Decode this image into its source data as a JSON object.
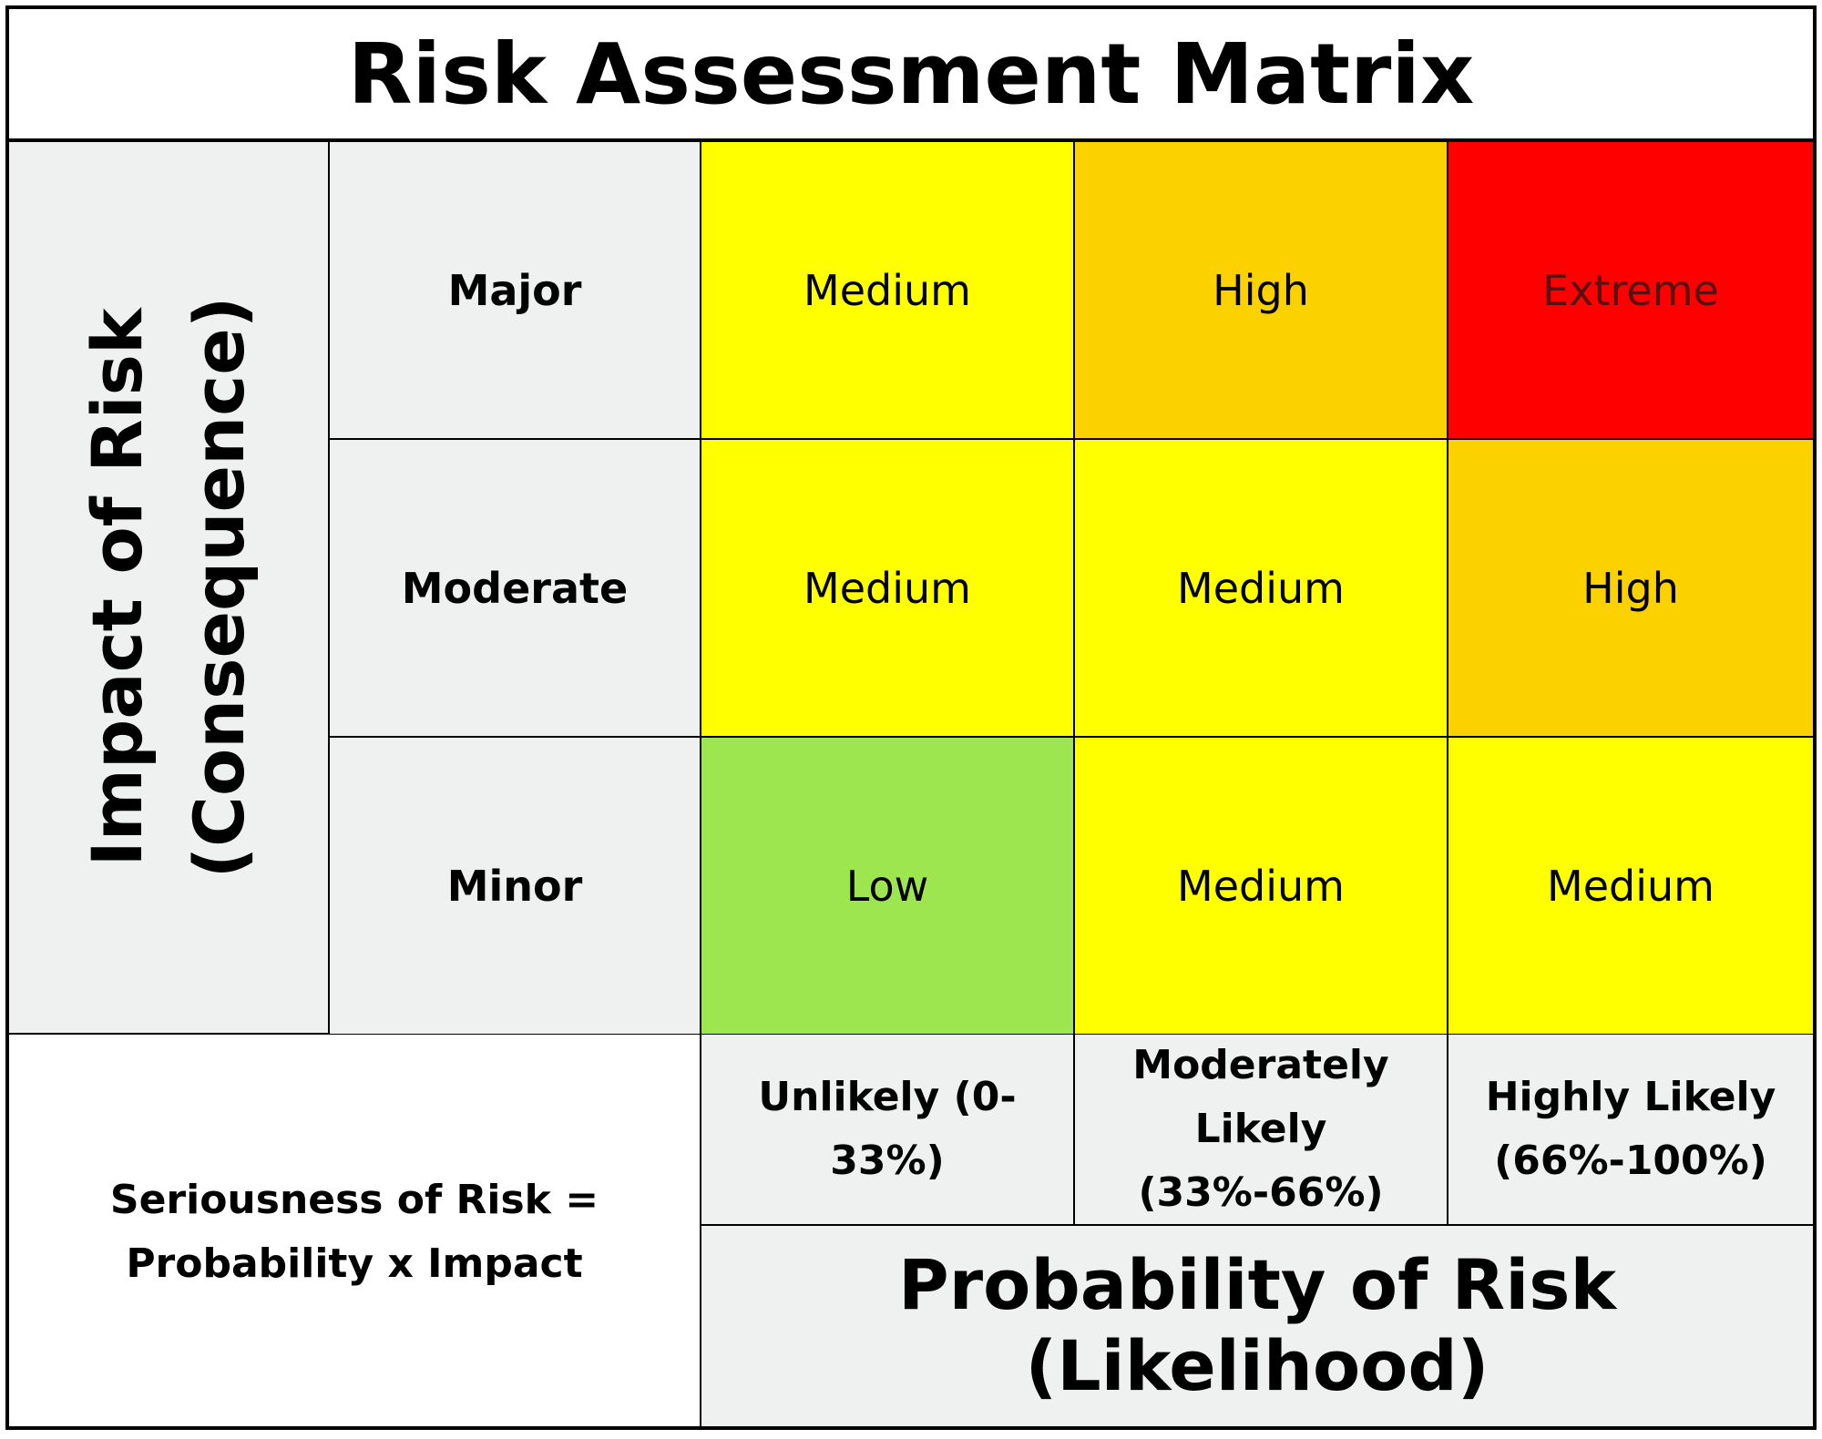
{
  "title": "Risk Assessment Matrix",
  "y_axis": {
    "line1": "Impact of Risk",
    "line2": "(Consequence)"
  },
  "x_axis": {
    "label": "Probability of Risk (Likelihood)"
  },
  "impact_levels": [
    "Major",
    "Moderate",
    "Minor"
  ],
  "probability_levels": [
    "Unlikely (0-33%)",
    "Moderately Likely (33%-66%)",
    "Highly Likely (66%-100%)"
  ],
  "formula": {
    "line1": "Seriousness of Risk =",
    "line2": "Probability x Impact"
  },
  "matrix": [
    [
      "Medium",
      "High",
      "Extreme"
    ],
    [
      "Medium",
      "Medium",
      "High"
    ],
    [
      "Low",
      "Medium",
      "Medium"
    ]
  ],
  "colors": {
    "Low": "#9de650",
    "Medium": "#ffff00",
    "High": "#fbd200",
    "Extreme": "#ff0000",
    "Extreme_text": "#5a1010",
    "axis_fill": "#eff1f1"
  }
}
